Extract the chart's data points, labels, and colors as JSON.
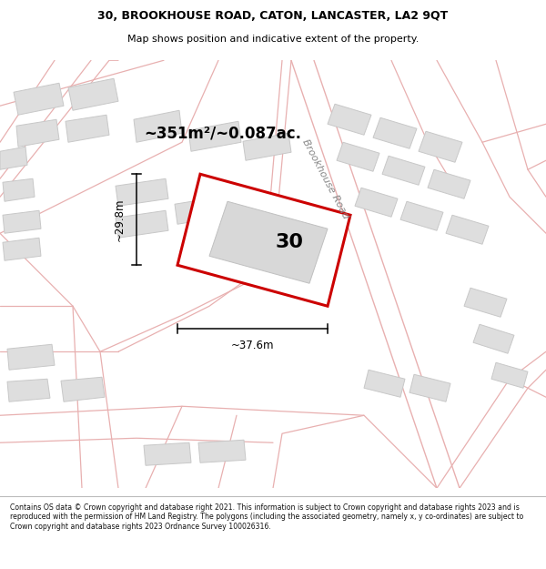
{
  "title_line1": "30, BROOKHOUSE ROAD, CATON, LANCASTER, LA2 9QT",
  "title_line2": "Map shows position and indicative extent of the property.",
  "area_text": "~351m²/~0.087ac.",
  "number_label": "30",
  "road_label": "Brookhouse Road",
  "dim_width": "~37.6m",
  "dim_height": "~29.8m",
  "footer": "Contains OS data © Crown copyright and database right 2021. This information is subject to Crown copyright and database rights 2023 and is reproduced with the permission of HM Land Registry. The polygons (including the associated geometry, namely x, y co-ordinates) are subject to Crown copyright and database rights 2023 Ordnance Survey 100026316.",
  "map_bg": "#f8f4f4",
  "road_color": "#e8b0b0",
  "road_lw": 0.8,
  "building_fill": "#dedede",
  "building_edge": "#c8c8c8",
  "building_lw": 0.7,
  "highlight_fill": "#ffffff",
  "highlight_edge": "#cc0000",
  "highlight_lw": 2.2,
  "title_bg": "#ffffff",
  "footer_bg": "#ffffff",
  "inner_fill": "#d8d8d8",
  "inner_edge": "#c0c0c0"
}
